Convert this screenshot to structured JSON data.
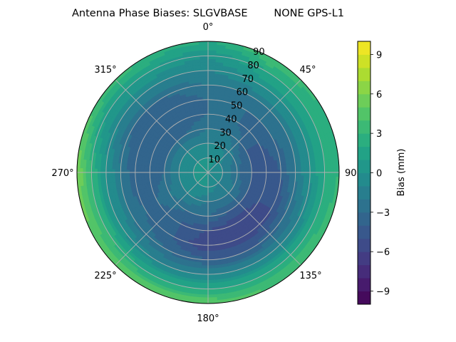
{
  "chart_data": {
    "type": "heatmap",
    "subtype": "polar-contourf",
    "title": "Antenna Phase Biases: SLGVBASE        NONE GPS-L1",
    "colormap": "viridis",
    "azimuth_direction": "clockwise",
    "azimuth_zero": "top",
    "theta_tick_labels": [
      "0°",
      "45°",
      "90°",
      "135°",
      "180°",
      "225°",
      "270°",
      "315°"
    ],
    "radial_tick_labels": [
      "10",
      "20",
      "30",
      "40",
      "50",
      "60",
      "70",
      "80",
      "90"
    ],
    "radial_range": [
      0,
      90
    ],
    "grid": true,
    "colorbar": {
      "label": "Bias (mm)",
      "range": [
        -10,
        10
      ],
      "levels_step": 1,
      "tick_labels": [
        "−9",
        "−6",
        "−3",
        "0",
        "3",
        "6",
        "9"
      ],
      "tick_values": [
        -9,
        -6,
        -3,
        0,
        3,
        6,
        9
      ]
    },
    "azimuths": [
      0,
      30,
      60,
      90,
      120,
      150,
      180,
      210,
      240,
      270,
      300,
      330
    ],
    "zeniths": [
      0,
      10,
      20,
      30,
      40,
      50,
      60,
      70,
      80,
      90
    ],
    "values": [
      [
        0,
        0,
        -1,
        -2,
        -3,
        -3,
        -2,
        -1,
        0,
        2
      ],
      [
        0,
        0,
        -1,
        -2,
        -3,
        -3,
        -2,
        0,
        2,
        4
      ],
      [
        0,
        -1,
        -2,
        -4,
        -4,
        -3,
        -2,
        0,
        2,
        3
      ],
      [
        0,
        -1,
        -3,
        -4,
        -5,
        -4,
        -2,
        0,
        2,
        3
      ],
      [
        0,
        -1,
        -2,
        -4,
        -5,
        -5,
        -3,
        -1,
        2,
        4
      ],
      [
        0,
        -1,
        -2,
        -4,
        -6,
        -6,
        -4,
        -1,
        2,
        4
      ],
      [
        0,
        0,
        -2,
        -3,
        -5,
        -6,
        -4,
        -1,
        2,
        5
      ],
      [
        0,
        0,
        -1,
        -3,
        -4,
        -4,
        -3,
        -1,
        2,
        5
      ],
      [
        0,
        0,
        -1,
        -2,
        -3,
        -3,
        -2,
        0,
        3,
        5
      ],
      [
        0,
        0,
        -1,
        -3,
        -4,
        -4,
        -2,
        0,
        3,
        6
      ],
      [
        0,
        0,
        -1,
        -3,
        -4,
        -4,
        -3,
        -1,
        1,
        4
      ],
      [
        0,
        0,
        -1,
        -3,
        -4,
        -4,
        -3,
        -1,
        1,
        3
      ]
    ]
  }
}
